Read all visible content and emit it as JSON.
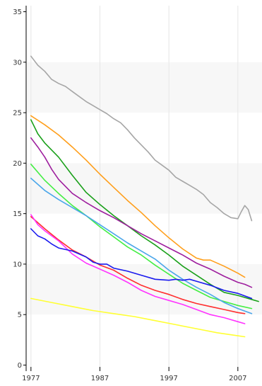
{
  "chart_data": {
    "type": "line",
    "xlim": [
      1976.3,
      2010.5
    ],
    "ylim": [
      -0.6,
      35.6
    ],
    "x_ticks": [
      1977,
      1987,
      1997,
      2007
    ],
    "x_tick_labels": [
      "1977",
      "1987",
      "1997",
      "2007"
    ],
    "y_ticks": [
      0,
      5,
      10,
      15,
      20,
      25,
      30,
      35
    ],
    "y_tick_labels": [
      "0",
      "5",
      "10",
      "15",
      "20",
      "25",
      "30",
      "35"
    ],
    "grid": true,
    "shaded_bands": [
      [
        5,
        10
      ],
      [
        15,
        20
      ],
      [
        25,
        30
      ]
    ],
    "series": [
      {
        "color": "#a6a6a6",
        "x": [
          1977,
          1978,
          1979,
          1980,
          1981,
          1982,
          1983,
          1984,
          1985,
          1986,
          1987,
          1988,
          1989,
          1990,
          1991,
          1992,
          1993,
          1994,
          1995,
          1996,
          1997,
          1998,
          1999,
          2000,
          2001,
          2002,
          2003,
          2004,
          2005,
          2006,
          2007,
          2007.5,
          2008,
          2008.5,
          2009
        ],
        "y": [
          30.6,
          29.7,
          29.1,
          28.3,
          27.9,
          27.6,
          27.1,
          26.6,
          26.1,
          25.7,
          25.3,
          24.9,
          24.4,
          24.0,
          23.3,
          22.5,
          21.8,
          21.1,
          20.3,
          19.8,
          19.3,
          18.6,
          18.2,
          17.8,
          17.4,
          16.9,
          16.1,
          15.6,
          15.0,
          14.6,
          14.5,
          15.2,
          15.8,
          15.4,
          14.3
        ]
      },
      {
        "color": "#ff9f1c",
        "x": [
          1977,
          1979,
          1981,
          1983,
          1985,
          1987,
          1989,
          1991,
          1993,
          1995,
          1997,
          1999,
          2001,
          2002,
          2003,
          2005,
          2007,
          2008
        ],
        "y": [
          24.7,
          23.8,
          22.8,
          21.6,
          20.3,
          18.9,
          17.6,
          16.3,
          15.1,
          13.8,
          12.6,
          11.5,
          10.6,
          10.4,
          10.4,
          9.8,
          9.1,
          8.7
        ]
      },
      {
        "color": "#1aa01a",
        "x": [
          1977,
          1978,
          1979,
          1981,
          1983,
          1985,
          1987,
          1989,
          1991,
          1993,
          1995,
          1997,
          1999,
          2001,
          2003,
          2005,
          2007,
          2009,
          2010
        ],
        "y": [
          24.3,
          22.9,
          22.0,
          20.6,
          18.8,
          17.1,
          15.9,
          14.8,
          13.8,
          12.8,
          11.9,
          10.9,
          9.8,
          8.9,
          8.0,
          7.2,
          6.9,
          6.5,
          6.3
        ]
      },
      {
        "color": "#9e1f9e",
        "x": [
          1977,
          1978,
          1979,
          1980,
          1981,
          1983,
          1985,
          1987,
          1989,
          1991,
          1993,
          1995,
          1997,
          1999,
          2001,
          2003,
          2005,
          2007,
          2008,
          2009
        ],
        "y": [
          22.5,
          21.6,
          20.6,
          19.4,
          18.4,
          17.0,
          16.1,
          15.3,
          14.6,
          13.8,
          13.0,
          12.3,
          11.6,
          10.9,
          10.1,
          9.5,
          8.8,
          8.2,
          8.0,
          7.7
        ]
      },
      {
        "color": "#44ee44",
        "x": [
          1977,
          1979,
          1981,
          1983,
          1985,
          1987,
          1989,
          1991,
          1993,
          1995,
          1997,
          1999,
          2001,
          2003,
          2005,
          2007,
          2009
        ],
        "y": [
          19.9,
          18.3,
          17.0,
          15.8,
          14.8,
          13.7,
          12.7,
          11.7,
          10.9,
          9.9,
          9.0,
          8.1,
          7.4,
          6.7,
          6.3,
          5.9,
          5.6
        ]
      },
      {
        "color": "#4aa6ea",
        "x": [
          1977,
          1979,
          1981,
          1983,
          1985,
          1987,
          1989,
          1991,
          1993,
          1995,
          1997,
          1999,
          2001,
          2003,
          2005,
          2007,
          2009
        ],
        "y": [
          18.5,
          17.3,
          16.4,
          15.6,
          14.8,
          13.9,
          13.0,
          12.1,
          11.3,
          10.5,
          9.4,
          8.5,
          7.7,
          7.0,
          6.2,
          5.6,
          5.1
        ]
      },
      {
        "color": "#ff2e2e",
        "x": [
          1977,
          1979,
          1981,
          1983,
          1985,
          1987,
          1989,
          1991,
          1993,
          1995,
          1997,
          1999,
          2001,
          2003,
          2005,
          2007,
          2008
        ],
        "y": [
          14.7,
          13.5,
          12.4,
          11.4,
          10.7,
          9.9,
          9.4,
          8.6,
          7.9,
          7.4,
          7.0,
          6.5,
          6.1,
          5.8,
          5.5,
          5.2,
          5.1
        ]
      },
      {
        "color": "#ff33ff",
        "x": [
          1977,
          1978,
          1979,
          1981,
          1983,
          1985,
          1987,
          1989,
          1991,
          1993,
          1995,
          1997,
          1999,
          2001,
          2003,
          2005,
          2007,
          2008
        ],
        "y": [
          14.9,
          13.9,
          13.3,
          12.3,
          11.0,
          10.1,
          9.5,
          8.9,
          8.2,
          7.4,
          6.8,
          6.4,
          6.0,
          5.5,
          5.0,
          4.7,
          4.3,
          4.1
        ]
      },
      {
        "color": "#1a1aee",
        "x": [
          1977,
          1978,
          1979,
          1980,
          1981,
          1983,
          1985,
          1986,
          1987,
          1988,
          1989,
          1991,
          1993,
          1995,
          1997,
          1998,
          1999,
          2000,
          2001,
          2003,
          2005,
          2007,
          2009
        ],
        "y": [
          13.5,
          12.8,
          12.5,
          12.0,
          11.6,
          11.3,
          10.7,
          10.2,
          10.0,
          10.0,
          9.6,
          9.3,
          8.9,
          8.5,
          8.4,
          8.5,
          8.4,
          8.5,
          8.3,
          7.9,
          7.4,
          7.1,
          6.6
        ]
      },
      {
        "color": "#ffff33",
        "x": [
          1977,
          1980,
          1983,
          1986,
          1989,
          1992,
          1995,
          1998,
          2001,
          2004,
          2007,
          2008
        ],
        "y": [
          6.6,
          6.2,
          5.8,
          5.4,
          5.1,
          4.8,
          4.4,
          4.0,
          3.6,
          3.2,
          2.9,
          2.8
        ]
      }
    ]
  }
}
